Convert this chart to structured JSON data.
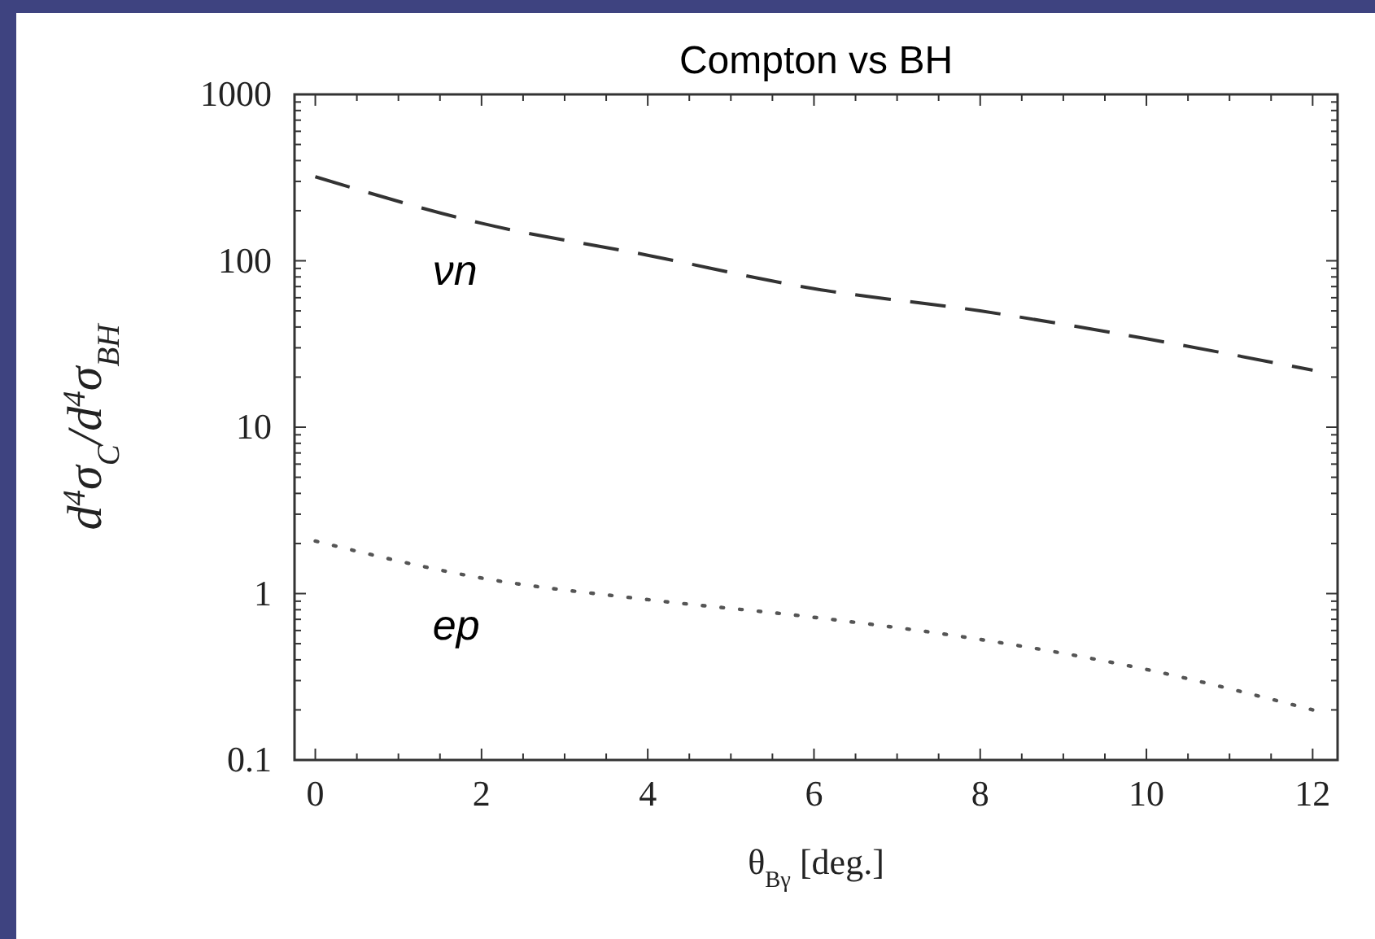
{
  "chart_data": {
    "type": "line",
    "title": "Compton vs BH",
    "xlabel": "θ$_{Bγ}$ [deg.]",
    "ylabel": "d$^{4}$σ$_{C}$/d$^{4}$σ$_{BH}$",
    "x": [
      0,
      2,
      4,
      6,
      8,
      10,
      12
    ],
    "series": [
      {
        "name": "νn",
        "color": "#333333",
        "line_style": "dashed",
        "values": [
          320,
          168,
          108,
          68,
          50,
          34,
          22
        ]
      },
      {
        "name": "ep",
        "color": "#555555",
        "line_style": "dotted",
        "values": [
          2.07,
          1.24,
          0.92,
          0.72,
          0.53,
          0.35,
          0.2
        ]
      }
    ],
    "log": "y",
    "xlim": [
      -0.25,
      12.3
    ],
    "ylim": [
      0.1,
      1000
    ],
    "xticks": [
      0,
      2,
      4,
      6,
      8,
      10,
      12
    ],
    "yticks": [
      0.1,
      1,
      10,
      100,
      1000
    ],
    "marker": "none"
  }
}
